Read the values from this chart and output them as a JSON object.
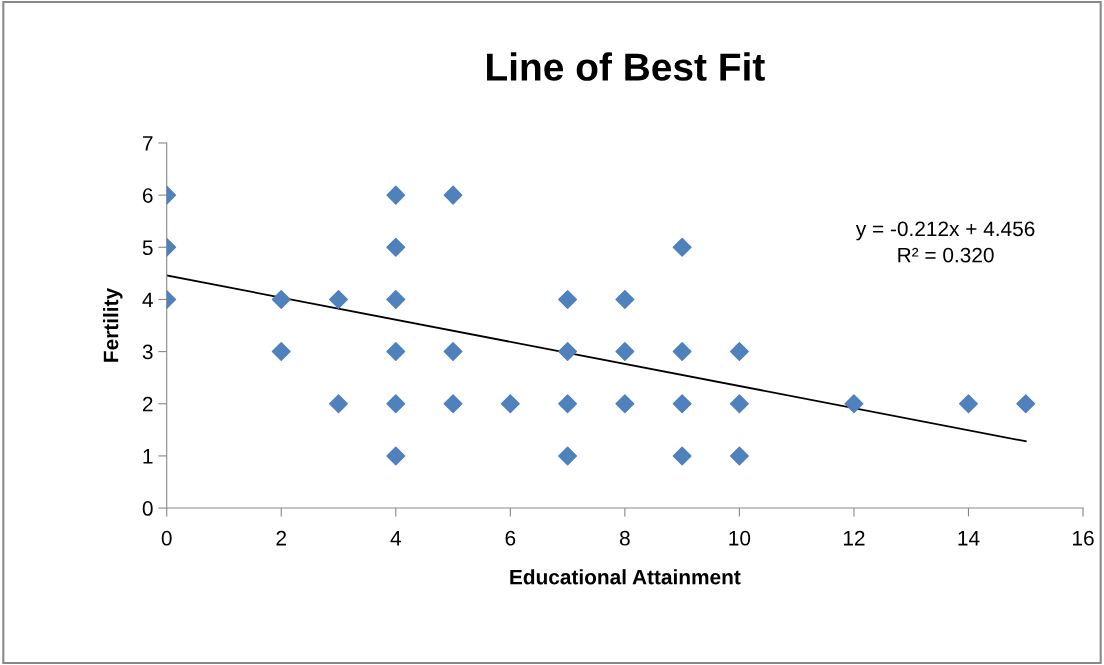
{
  "chart_data": {
    "type": "scatter",
    "title": "Line of Best Fit",
    "xlabel": "Educational Attainment",
    "ylabel": "Fertility",
    "series": [
      {
        "color": "#4f81bd",
        "marker": "diamond",
        "x": [
          0,
          0,
          0,
          2,
          2,
          3,
          3,
          4,
          4,
          4,
          4,
          4,
          4,
          5,
          5,
          5,
          6,
          7,
          7,
          7,
          7,
          8,
          8,
          8,
          9,
          9,
          9,
          9,
          10,
          10,
          10,
          12,
          14,
          15
        ],
        "values": [
          6,
          5,
          4,
          4,
          3,
          4,
          2,
          6,
          5,
          4,
          3,
          2,
          1,
          6,
          3,
          2,
          2,
          4,
          3,
          2,
          1,
          4,
          3,
          2,
          5,
          3,
          2,
          1,
          3,
          2,
          1,
          2,
          2,
          2
        ]
      },
      {
        "type": "line",
        "color": "#000000",
        "marker": "none",
        "line_style": "solid",
        "x": [
          0,
          15
        ],
        "values": [
          4.46,
          1.28
        ]
      }
    ],
    "annotations": [
      "y = -0.212x + 4.456",
      "R² = 0.320"
    ],
    "xlim": [
      0,
      16
    ],
    "xticks": [
      0,
      2,
      4,
      6,
      8,
      10,
      12,
      14,
      16
    ],
    "ylim": [
      0,
      7
    ],
    "yticks": [
      0,
      1,
      2,
      3,
      4,
      5,
      6,
      7
    ],
    "grid": false,
    "legend": false
  }
}
